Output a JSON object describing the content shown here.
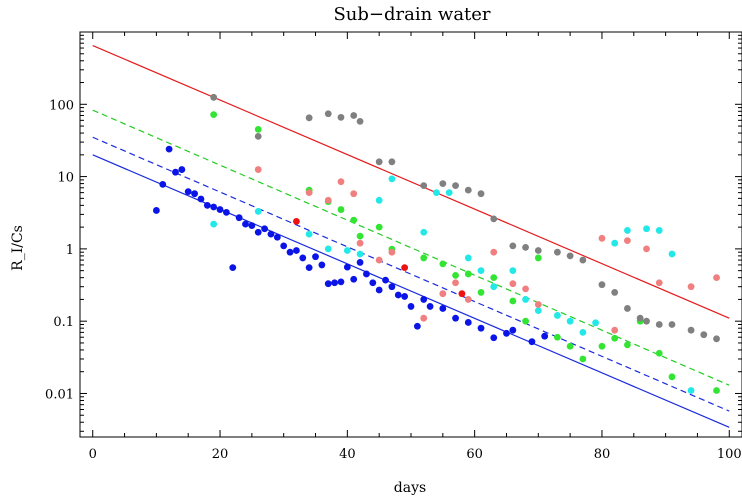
{
  "chart_data": {
    "type": "scatter",
    "title": "Sub−drain water",
    "xlabel": "days",
    "ylabel": "R_I/Cs",
    "xlim": [
      -2,
      102
    ],
    "ylim": [
      0.0025,
      1000
    ],
    "yscale": "log",
    "grid": false,
    "xticks": [
      {
        "value": 0,
        "label": "0"
      },
      {
        "value": 20,
        "label": "20"
      },
      {
        "value": 40,
        "label": "40"
      },
      {
        "value": 60,
        "label": "60"
      },
      {
        "value": 80,
        "label": "80"
      },
      {
        "value": 100,
        "label": "100"
      }
    ],
    "yticks": [
      {
        "value": 0.01,
        "label": "0.01"
      },
      {
        "value": 0.1,
        "label": "0.1"
      },
      {
        "value": 1,
        "label": "1"
      },
      {
        "value": 10,
        "label": "10"
      },
      {
        "value": 100,
        "label": "100"
      }
    ],
    "lines": [
      {
        "color": "#e41a1c",
        "dash": "",
        "points": [
          [
            0,
            650
          ],
          [
            100,
            0.11
          ]
        ]
      },
      {
        "color": "#22cc22",
        "dash": "6,4",
        "points": [
          [
            0,
            83
          ],
          [
            100,
            0.013
          ]
        ]
      },
      {
        "color": "#1b2bdd",
        "dash": "6,4",
        "points": [
          [
            0,
            35
          ],
          [
            100,
            0.0057
          ]
        ]
      },
      {
        "color": "#1b2bdd",
        "dash": "",
        "points": [
          [
            0,
            20
          ],
          [
            100,
            0.0034
          ]
        ]
      }
    ],
    "series": [
      {
        "color": "#0a14e6",
        "points": [
          [
            10,
            3.4
          ],
          [
            11,
            7.8
          ],
          [
            12,
            24
          ],
          [
            13,
            11.5
          ],
          [
            14,
            12.5
          ],
          [
            15,
            6.2
          ],
          [
            16,
            5.8
          ],
          [
            17,
            4.9
          ],
          [
            18,
            4.0
          ],
          [
            19,
            3.8
          ],
          [
            20,
            3.5
          ],
          [
            21,
            3.2
          ],
          [
            22,
            0.55
          ],
          [
            23,
            2.7
          ],
          [
            24,
            2.2
          ],
          [
            25,
            2.1
          ],
          [
            26,
            1.7
          ],
          [
            27,
            1.9
          ],
          [
            28,
            1.6
          ],
          [
            29,
            1.45
          ],
          [
            30,
            1.1
          ],
          [
            31,
            0.9
          ],
          [
            32,
            0.95
          ],
          [
            33,
            0.75
          ],
          [
            34,
            0.55
          ],
          [
            35,
            0.78
          ],
          [
            36,
            0.6
          ],
          [
            37,
            0.33
          ],
          [
            38,
            0.34
          ],
          [
            39,
            0.35
          ],
          [
            40,
            0.56
          ],
          [
            41,
            0.38
          ],
          [
            42,
            0.65
          ],
          [
            43,
            0.45
          ],
          [
            44,
            0.34
          ],
          [
            45,
            0.27
          ],
          [
            46,
            0.37
          ],
          [
            47,
            0.3
          ],
          [
            48,
            0.23
          ],
          [
            49,
            0.22
          ],
          [
            50,
            0.16
          ],
          [
            51,
            0.085
          ],
          [
            52,
            0.2
          ],
          [
            53,
            0.16
          ],
          [
            55,
            0.15
          ],
          [
            57,
            0.11
          ],
          [
            59,
            0.096
          ],
          [
            61,
            0.08
          ],
          [
            63,
            0.059
          ],
          [
            65,
            0.068
          ],
          [
            66,
            0.075
          ],
          [
            69,
            0.052
          ],
          [
            71,
            0.062
          ]
        ]
      },
      {
        "color": "#33e533",
        "points": [
          [
            19,
            72
          ],
          [
            26,
            45
          ],
          [
            34,
            6.5
          ],
          [
            37,
            4.5
          ],
          [
            39,
            3.5
          ],
          [
            41,
            2.5
          ],
          [
            42,
            1.5
          ],
          [
            45,
            2.0
          ],
          [
            47,
            0.99
          ],
          [
            52,
            0.75
          ],
          [
            55,
            0.62
          ],
          [
            57,
            0.43
          ],
          [
            59,
            0.45
          ],
          [
            61,
            0.25
          ],
          [
            63,
            0.4
          ],
          [
            66,
            0.19
          ],
          [
            68,
            0.1
          ],
          [
            70,
            0.75
          ],
          [
            73,
            0.06
          ],
          [
            75,
            0.045
          ],
          [
            77,
            0.03
          ],
          [
            80,
            0.045
          ],
          [
            82,
            0.058
          ],
          [
            84,
            0.047
          ],
          [
            86,
            0.1
          ],
          [
            89,
            0.036
          ],
          [
            91,
            0.017
          ],
          [
            98,
            0.011
          ]
        ]
      },
      {
        "color": "#22e8e8",
        "points": [
          [
            19,
            2.2
          ],
          [
            26,
            3.3
          ],
          [
            34,
            1.6
          ],
          [
            37,
            1.0
          ],
          [
            40,
            0.95
          ],
          [
            42,
            0.85
          ],
          [
            45,
            4.7
          ],
          [
            47,
            9.3
          ],
          [
            52,
            1.7
          ],
          [
            54,
            6.0
          ],
          [
            56,
            6.0
          ],
          [
            59,
            0.75
          ],
          [
            61,
            0.5
          ],
          [
            63,
            0.3
          ],
          [
            66,
            0.5
          ],
          [
            68,
            0.2
          ],
          [
            70,
            0.14
          ],
          [
            73,
            0.12
          ],
          [
            75,
            0.1
          ],
          [
            77,
            0.07
          ],
          [
            79,
            0.095
          ],
          [
            82,
            1.2
          ],
          [
            84,
            1.8
          ],
          [
            87,
            1.9
          ],
          [
            89,
            1.8
          ],
          [
            91,
            0.85
          ],
          [
            94,
            0.011
          ]
        ]
      },
      {
        "color": "#f08080",
        "points": [
          [
            26,
            12.5
          ],
          [
            34,
            6.0
          ],
          [
            37,
            4.7
          ],
          [
            39,
            8.5
          ],
          [
            41,
            5.8
          ],
          [
            42,
            1.2
          ],
          [
            45,
            0.7
          ],
          [
            47,
            0.9
          ],
          [
            52,
            0.11
          ],
          [
            55,
            0.24
          ],
          [
            57,
            0.34
          ],
          [
            59,
            0.2
          ],
          [
            63,
            0.9
          ],
          [
            66,
            0.33
          ],
          [
            68,
            0.28
          ],
          [
            70,
            0.17
          ],
          [
            80,
            1.4
          ],
          [
            82,
            0.075
          ],
          [
            84,
            1.3
          ],
          [
            87,
            1.0
          ],
          [
            89,
            0.34
          ],
          [
            94,
            0.3
          ],
          [
            98,
            0.4
          ]
        ]
      },
      {
        "color": "#ee1111",
        "points": [
          [
            32,
            2.4
          ],
          [
            49,
            0.55
          ],
          [
            58,
            0.24
          ]
        ]
      },
      {
        "color": "#808080",
        "points": [
          [
            19,
            125
          ],
          [
            26,
            36
          ],
          [
            34,
            65
          ],
          [
            37,
            74
          ],
          [
            39,
            66
          ],
          [
            41,
            70
          ],
          [
            42,
            58
          ],
          [
            45,
            16
          ],
          [
            47,
            16
          ],
          [
            52,
            7.5
          ],
          [
            55,
            8.0
          ],
          [
            57,
            7.5
          ],
          [
            59,
            6.5
          ],
          [
            61,
            5.8
          ],
          [
            63,
            2.6
          ],
          [
            66,
            1.1
          ],
          [
            68,
            1.05
          ],
          [
            70,
            0.95
          ],
          [
            73,
            0.9
          ],
          [
            75,
            0.8
          ],
          [
            77,
            0.7
          ],
          [
            80,
            0.32
          ],
          [
            82,
            0.25
          ],
          [
            84,
            0.15
          ],
          [
            86,
            0.11
          ],
          [
            87,
            0.1
          ],
          [
            89,
            0.09
          ],
          [
            91,
            0.09
          ],
          [
            94,
            0.075
          ],
          [
            96,
            0.065
          ],
          [
            98,
            0.057
          ]
        ]
      }
    ]
  }
}
